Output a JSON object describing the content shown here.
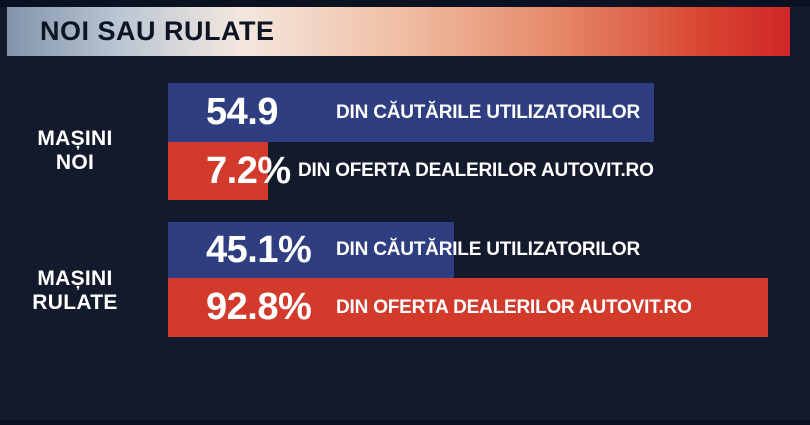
{
  "header": {
    "title": "NOI SAU RULATE"
  },
  "colors": {
    "background": "#121a2b",
    "bar_blue": "#2f3e80",
    "bar_red": "#d23a2c",
    "header_gradient_start": "#8394ab",
    "header_gradient_end": "#d02728",
    "header_text": "#0d1424",
    "bar_text": "#ffffff"
  },
  "chart_data": {
    "type": "bar",
    "orientation": "horizontal",
    "title": "NOI SAU RULATE",
    "units": "%",
    "legend": false,
    "series_names": [
      "DIN CĂUTĂRILE UTILIZATORILOR",
      "DIN OFERTA DEALERILOR AUTOVIT.RO"
    ],
    "groups": [
      {
        "label": "MAȘINI NOI",
        "label_lines": [
          "MAȘINI",
          "NOI"
        ],
        "bars": [
          {
            "series": "DIN CĂUTĂRILE UTILIZATORILOR",
            "value": 54.9,
            "value_label": "54.9",
            "metric": "DIN CĂUTĂRILE UTILIZATORILOR",
            "color": "#2f3e80"
          },
          {
            "series": "DIN OFERTA DEALERILOR AUTOVIT.RO",
            "value": 7.2,
            "value_label": "7.2%",
            "metric": "DIN OFERTA DEALERILOR AUTOVIT.RO",
            "color": "#d23a2c"
          }
        ]
      },
      {
        "label": "MAȘINI RULATE",
        "label_lines": [
          "MAȘINI",
          "RULATE"
        ],
        "bars": [
          {
            "series": "DIN CĂUTĂRILE UTILIZATORILOR",
            "value": 45.1,
            "value_label": "45.1%",
            "metric": "DIN CĂUTĂRILE UTILIZATORILOR",
            "color": "#2f3e80"
          },
          {
            "series": "DIN OFERTA DEALERILOR AUTOVIT.RO",
            "value": 92.8,
            "value_label": "92.8%",
            "metric": "DIN OFERTA DEALERILOR AUTOVIT.RO",
            "color": "#d23a2c"
          }
        ]
      }
    ]
  }
}
